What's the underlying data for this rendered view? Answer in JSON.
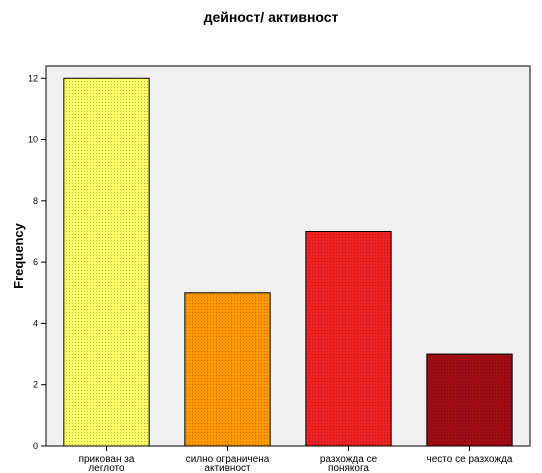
{
  "chart_data": {
    "type": "bar",
    "title": "дейност/ активност",
    "ylabel": "Frequency",
    "xlabel": "",
    "categories": [
      [
        "прикован за",
        "леглото"
      ],
      [
        "силно ограничена",
        "активност"
      ],
      [
        "разхожда се",
        "понякога"
      ],
      [
        "често се разхожда",
        ""
      ]
    ],
    "values": [
      12,
      5,
      7,
      3
    ],
    "ylim": [
      0,
      12.4
    ],
    "yticks": [
      0,
      2,
      4,
      6,
      8,
      10,
      12
    ],
    "colors": [
      "#ffff66",
      "#ff9900",
      "#ee2222",
      "#a00c14"
    ],
    "plot_background": "#f0f0f0",
    "grid": false,
    "legend": "none"
  }
}
